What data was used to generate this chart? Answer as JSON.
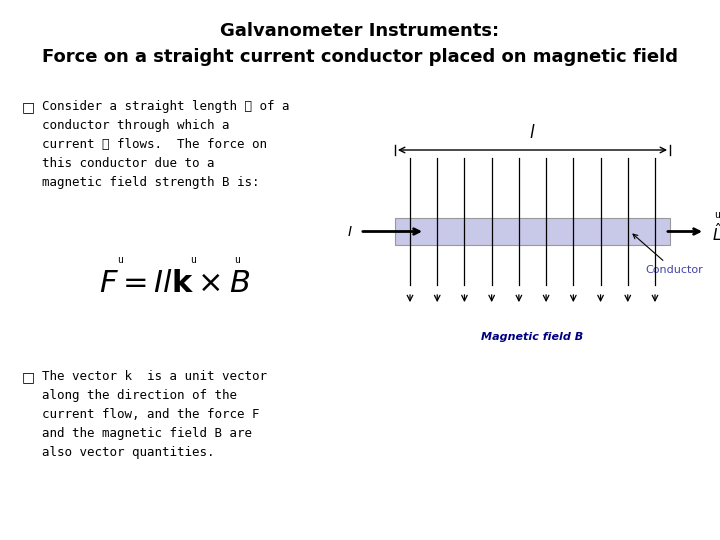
{
  "title_line1": "Galvanometer Instruments:",
  "title_line2": "Force on a straight current conductor placed on magnetic field",
  "bg_color": "#ffffff",
  "conductor_color": "#c8c8e8",
  "conductor_border": "#999999",
  "conductor_label_color": "#4444aa",
  "bullet1_lines": [
    "Consider a straight length ℓ of a",
    "conductor through which a",
    "current ℓ flows.  The force on",
    "this conductor due to a",
    "magnetic field strength B is:"
  ],
  "bullet2_lines": [
    "The vector k  is a unit vector",
    "along the direction of the",
    "current flow, and the force F",
    "and the magnetic field B are",
    "also vector quantities."
  ],
  "formula_text": "$F = Il\\mathbf{k} \\times \\mathbf{B}$",
  "mag_field_label": "Magnetic field B",
  "mag_field_color": "#000080"
}
